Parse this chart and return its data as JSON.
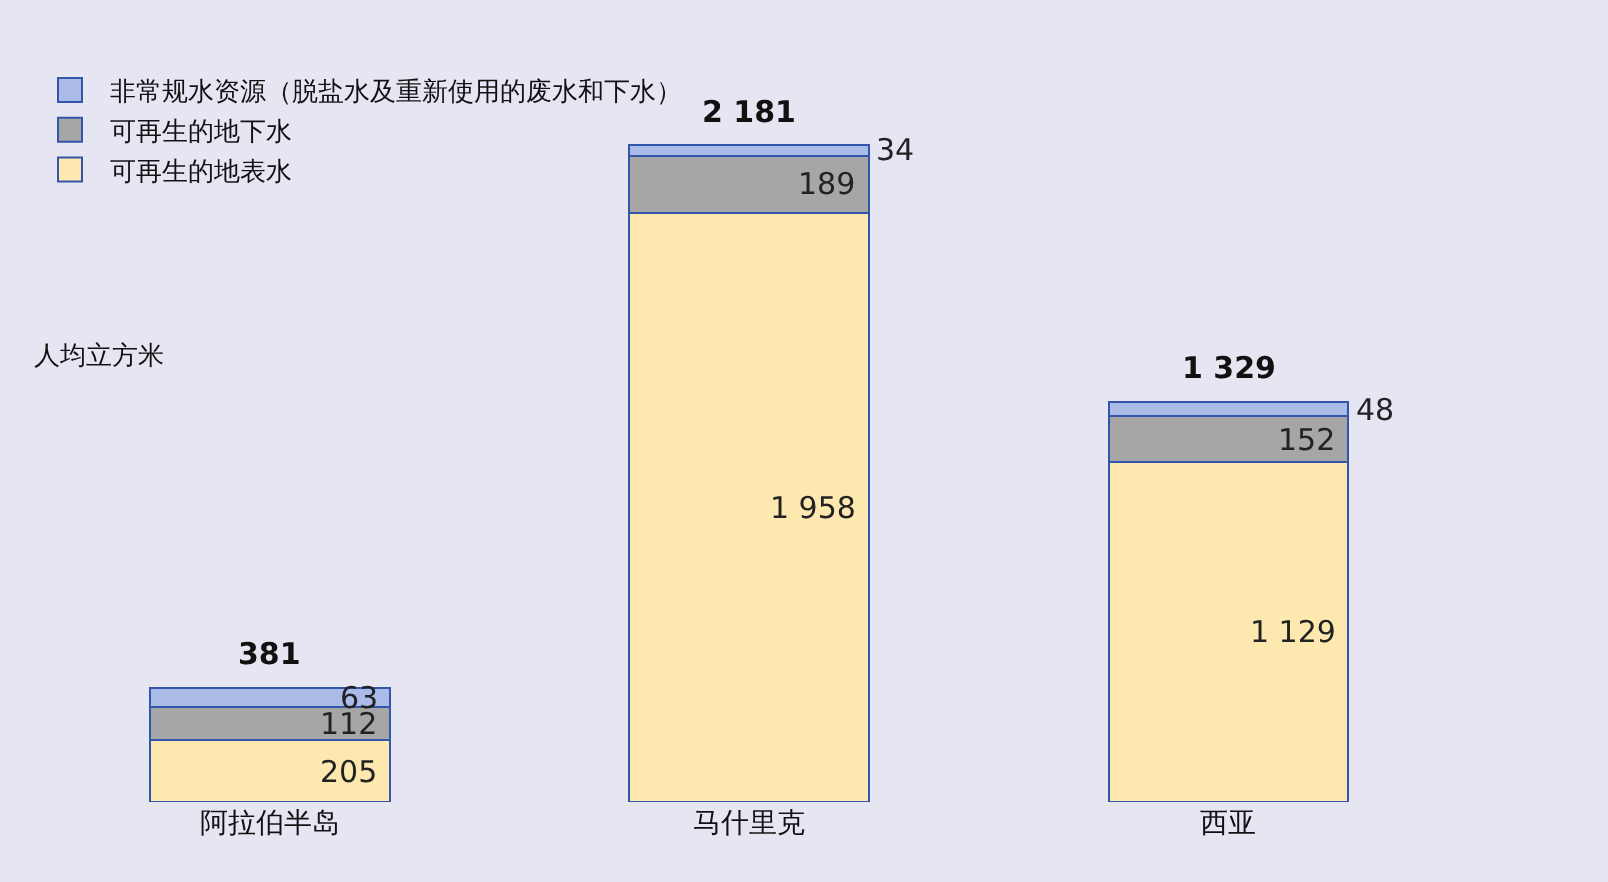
{
  "chart_data": {
    "type": "bar",
    "stacked": true,
    "data_labels": true,
    "legend": "top left",
    "grid": false,
    "ylabel": "人均立方米",
    "categories": [
      "阿拉伯半岛",
      "马什里克",
      "西亚"
    ],
    "series": [
      {
        "name": "可再生的地表水",
        "color": "#fde9b0",
        "values": [
          205,
          1958,
          1129
        ]
      },
      {
        "name": "可再生的地下水",
        "color": "#a6a6a6",
        "values": [
          112,
          189,
          152
        ]
      },
      {
        "name": "非常规水资源（脱盐水及重新使用的废水和下水）",
        "color": "#aabbe8",
        "values": [
          63,
          34,
          48
        ]
      }
    ],
    "totals": [
      "381",
      "2 181",
      "1 329"
    ]
  }
}
